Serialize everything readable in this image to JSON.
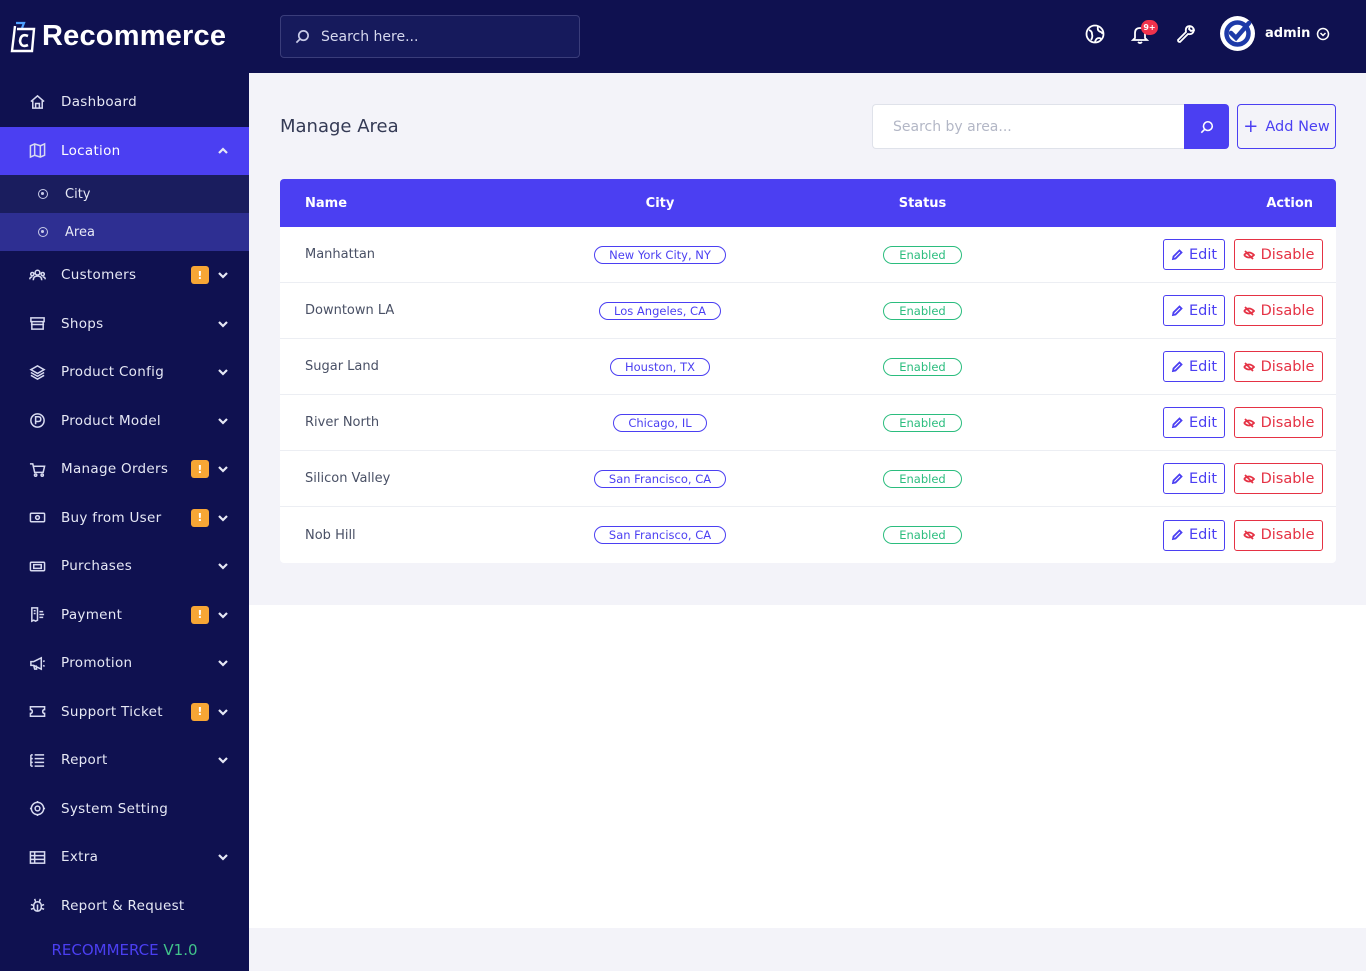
{
  "app": {
    "brand": "Recommerce"
  },
  "topbar": {
    "search_placeholder": "Search here...",
    "notification_count": "9+",
    "user_name": "admin"
  },
  "sidebar": {
    "items": [
      {
        "label": "Dashboard",
        "icon": "home-icon"
      },
      {
        "label": "Location",
        "icon": "map-icon",
        "expanded": true,
        "active": true,
        "children": [
          {
            "label": "City"
          },
          {
            "label": "Area",
            "active": true
          }
        ]
      },
      {
        "label": "Customers",
        "icon": "users-icon",
        "badge": "!"
      },
      {
        "label": "Shops",
        "icon": "store-icon"
      },
      {
        "label": "Product Config",
        "icon": "layers-icon"
      },
      {
        "label": "Product Model",
        "icon": "product-p-icon"
      },
      {
        "label": "Manage Orders",
        "icon": "cart-icon",
        "badge": "!"
      },
      {
        "label": "Buy from User",
        "icon": "cash-icon",
        "badge": "!"
      },
      {
        "label": "Purchases",
        "icon": "purchase-cash-icon"
      },
      {
        "label": "Payment",
        "icon": "receipt-icon",
        "badge": "!"
      },
      {
        "label": "Promotion",
        "icon": "megaphone-icon"
      },
      {
        "label": "Support Ticket",
        "icon": "ticket-icon",
        "badge": "!"
      },
      {
        "label": "Report",
        "icon": "list-icon"
      },
      {
        "label": "System Setting",
        "icon": "settings-icon"
      },
      {
        "label": "Extra",
        "icon": "table-icon"
      },
      {
        "label": "Report & Request",
        "icon": "bug-icon"
      }
    ],
    "version_name": "RECOMMERCE",
    "version_number": "V1.0"
  },
  "page": {
    "title": "Manage Area",
    "search_placeholder": "Search by area...",
    "add_new_label": "Add New"
  },
  "table": {
    "headers": {
      "name": "Name",
      "city": "City",
      "status": "Status",
      "action": "Action"
    },
    "edit_label": "Edit",
    "disable_label": "Disable",
    "rows": [
      {
        "name": "Manhattan",
        "city": "New York City, NY",
        "status": "Enabled"
      },
      {
        "name": "Downtown LA",
        "city": "Los Angeles, CA",
        "status": "Enabled"
      },
      {
        "name": "Sugar Land",
        "city": "Houston, TX",
        "status": "Enabled"
      },
      {
        "name": "River North",
        "city": "Chicago, IL",
        "status": "Enabled"
      },
      {
        "name": "Silicon Valley",
        "city": "San Francisco, CA",
        "status": "Enabled"
      },
      {
        "name": "Nob Hill",
        "city": "San Francisco, CA",
        "status": "Enabled"
      }
    ]
  },
  "colors": {
    "sidebar_bg": "#0f1150",
    "accent": "#4b3ff2",
    "badge": "#f7a635",
    "enabled": "#2bbd7e",
    "danger": "#e53244"
  }
}
